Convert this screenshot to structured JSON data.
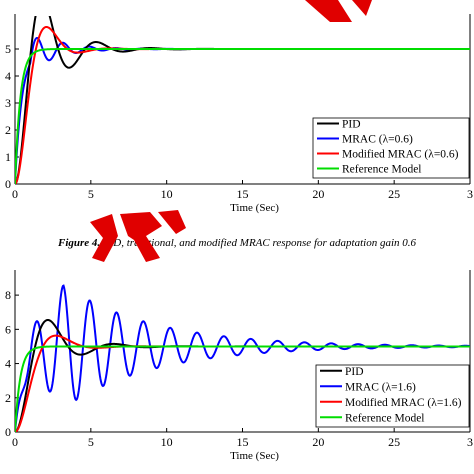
{
  "chart_data": [
    {
      "type": "line",
      "xlabel": "Time (Sec)",
      "xlim": [
        0,
        30
      ],
      "ylim": [
        0,
        6
      ],
      "xticks": [
        "0",
        "5",
        "10",
        "15",
        "20",
        "25",
        "3"
      ],
      "yticks": [
        "0",
        "1",
        "2",
        "3",
        "4",
        "5"
      ],
      "legend_position": "bottom-right",
      "grid": false,
      "series": [
        {
          "name": "PID",
          "color": "#000000",
          "kind": "pid",
          "params": {
            "zeta": 0.3,
            "wn": 1.85
          }
        },
        {
          "name": "MRAC (λ=0.6)",
          "color": "#0000ff",
          "kind": "mrac",
          "params": {
            "rise": 1.8,
            "amp": 1.35,
            "decay": 0.55,
            "w": 3.6,
            "phase": 0.0
          }
        },
        {
          "name": "Modified MRAC (λ=0.6)",
          "color": "#ff0000",
          "kind": "pid",
          "params": {
            "zeta": 0.5,
            "wn": 1.75
          }
        },
        {
          "name": "Reference Model",
          "color": "#00dd00",
          "kind": "ref",
          "params": {
            "tau": 0.35
          }
        }
      ],
      "final_value": 5
    },
    {
      "type": "line",
      "xlabel": "Time (Sec)",
      "xlim": [
        0,
        30
      ],
      "ylim": [
        0,
        9
      ],
      "xticks": [
        "0",
        "5",
        "10",
        "15",
        "20",
        "25",
        "3"
      ],
      "yticks": [
        "0",
        "2",
        "4",
        "6",
        "8"
      ],
      "legend_position": "bottom-right",
      "grid": false,
      "series": [
        {
          "name": "PID",
          "color": "#000000",
          "kind": "pid",
          "params": {
            "zeta": 0.35,
            "wn": 1.55
          }
        },
        {
          "name": "MRAC (λ=1.6)",
          "color": "#0000ff",
          "kind": "mrac2",
          "params": {
            "amp": 3.6,
            "decay": 0.17,
            "w": 3.55,
            "peakT": 3.2
          }
        },
        {
          "name": "Modified MRAC (λ=1.6)",
          "color": "#ff0000",
          "kind": "pid",
          "params": {
            "zeta": 0.55,
            "wn": 1.4
          }
        },
        {
          "name": "Reference Model",
          "color": "#00dd00",
          "kind": "ref",
          "params": {
            "tau": 0.35
          }
        }
      ],
      "final_value": 5
    }
  ],
  "caption": {
    "label": "Figure 4.",
    "text": " PID, traditional, and modified MRAC response for adaptation gain 0.6"
  }
}
